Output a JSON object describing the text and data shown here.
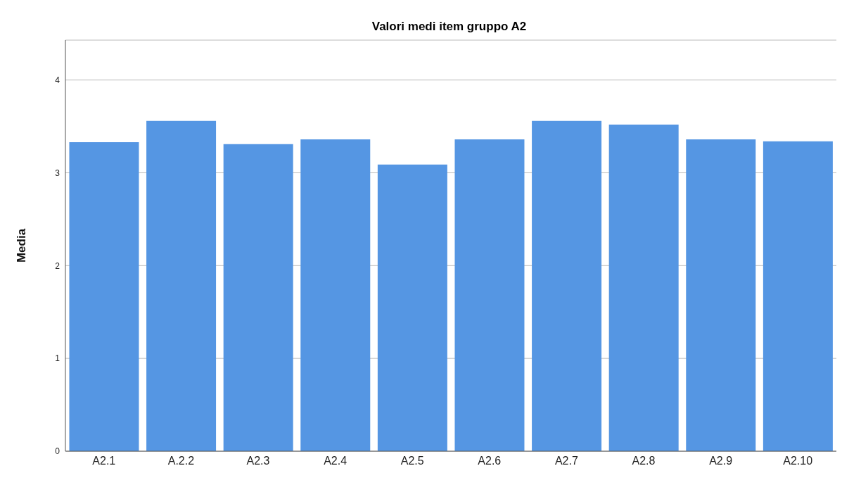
{
  "chart_data": {
    "type": "bar",
    "title": "Valori medi item gruppo A2",
    "ylabel": "Media",
    "categories": [
      "A2.1",
      "A.2.2",
      "A2.3",
      "A2.4",
      "A2.5",
      "A2.6",
      "A2.7",
      "A2.8",
      "A2.9",
      "A2.10"
    ],
    "values": [
      3.33,
      3.56,
      3.31,
      3.36,
      3.09,
      3.36,
      3.56,
      3.52,
      3.36,
      3.34
    ],
    "color": "#5596e3",
    "ylim": [
      0,
      4.43
    ],
    "yticks": [
      0,
      1,
      2,
      3,
      4
    ],
    "grid": "y"
  }
}
